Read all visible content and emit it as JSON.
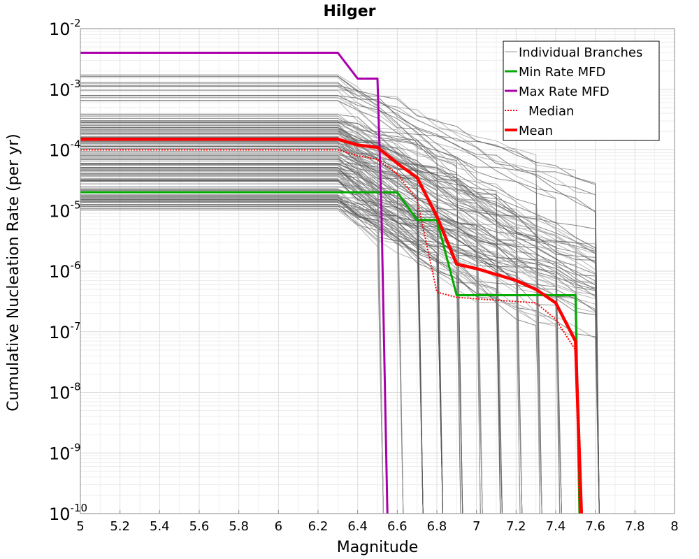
{
  "chart_data": {
    "type": "line",
    "title": "Hilger",
    "xlabel": "Magnitude",
    "ylabel": "Cumulative Nucleation Rate (per yr)",
    "xlim": [
      5,
      8
    ],
    "ylim": [
      1e-10,
      0.01
    ],
    "yscale": "log",
    "grid": true,
    "legend_position": "top-right",
    "x_ticks": [
      "5",
      "5.2",
      "5.4",
      "5.6",
      "5.8",
      "6",
      "6.2",
      "6.4",
      "6.6",
      "6.8",
      "7",
      "7.2",
      "7.4",
      "7.6",
      "7.8",
      "8"
    ],
    "y_ticks": [
      {
        "base": "10",
        "exp": "-2"
      },
      {
        "base": "10",
        "exp": "-3"
      },
      {
        "base": "10",
        "exp": "-4"
      },
      {
        "base": "10",
        "exp": "-5"
      },
      {
        "base": "10",
        "exp": "-6"
      },
      {
        "base": "10",
        "exp": "-7"
      },
      {
        "base": "10",
        "exp": "-8"
      },
      {
        "base": "10",
        "exp": "-9"
      },
      {
        "base": "10",
        "exp": "-10"
      }
    ],
    "legend": [
      {
        "label": "Individual Branches",
        "color": "#999999",
        "style": "thin"
      },
      {
        "label": "Min Rate MFD",
        "color": "#00aa00",
        "style": "solid"
      },
      {
        "label": "Max Rate MFD",
        "color": "#aa00aa",
        "style": "solid"
      },
      {
        "label": "Median",
        "color": "#ff0000",
        "style": "dotted"
      },
      {
        "label": "Mean",
        "color": "#ff0000",
        "style": "thick"
      }
    ],
    "series": [
      {
        "name": "Min Rate MFD",
        "color": "#00aa00",
        "x": [
          5.0,
          6.3,
          6.5,
          6.6,
          6.7,
          6.8,
          6.9,
          7.0,
          7.5,
          7.52
        ],
        "y": [
          2e-05,
          2e-05,
          2e-05,
          2e-05,
          7e-06,
          7e-06,
          4e-07,
          4e-07,
          4e-07,
          1e-10
        ]
      },
      {
        "name": "Max Rate MFD",
        "color": "#aa00aa",
        "x": [
          5.0,
          6.3,
          6.4,
          6.5,
          6.52,
          6.55
        ],
        "y": [
          0.004,
          0.004,
          0.0015,
          0.0015,
          1e-05,
          1e-10
        ]
      },
      {
        "name": "Median",
        "color": "#ff0000",
        "x": [
          5.0,
          6.3,
          6.4,
          6.5,
          6.6,
          6.7,
          6.8,
          6.9,
          7.0,
          7.3,
          7.4,
          7.5,
          7.52
        ],
        "y": [
          0.0001,
          0.0001,
          8e-05,
          7e-05,
          4e-05,
          1.5e-05,
          4.5e-07,
          3.7e-07,
          3.5e-07,
          3e-07,
          1.6e-07,
          5e-08,
          1e-10
        ]
      },
      {
        "name": "Mean",
        "color": "#ff0000",
        "x": [
          5.0,
          6.3,
          6.4,
          6.5,
          6.6,
          6.7,
          6.8,
          6.9,
          7.0,
          7.2,
          7.3,
          7.4,
          7.5,
          7.53
        ],
        "y": [
          0.00015,
          0.00015,
          0.00012,
          0.00011,
          6e-05,
          3.5e-05,
          8e-06,
          1.3e-06,
          1.1e-06,
          7e-07,
          5e-07,
          3e-07,
          7e-08,
          1e-10
        ]
      }
    ]
  }
}
